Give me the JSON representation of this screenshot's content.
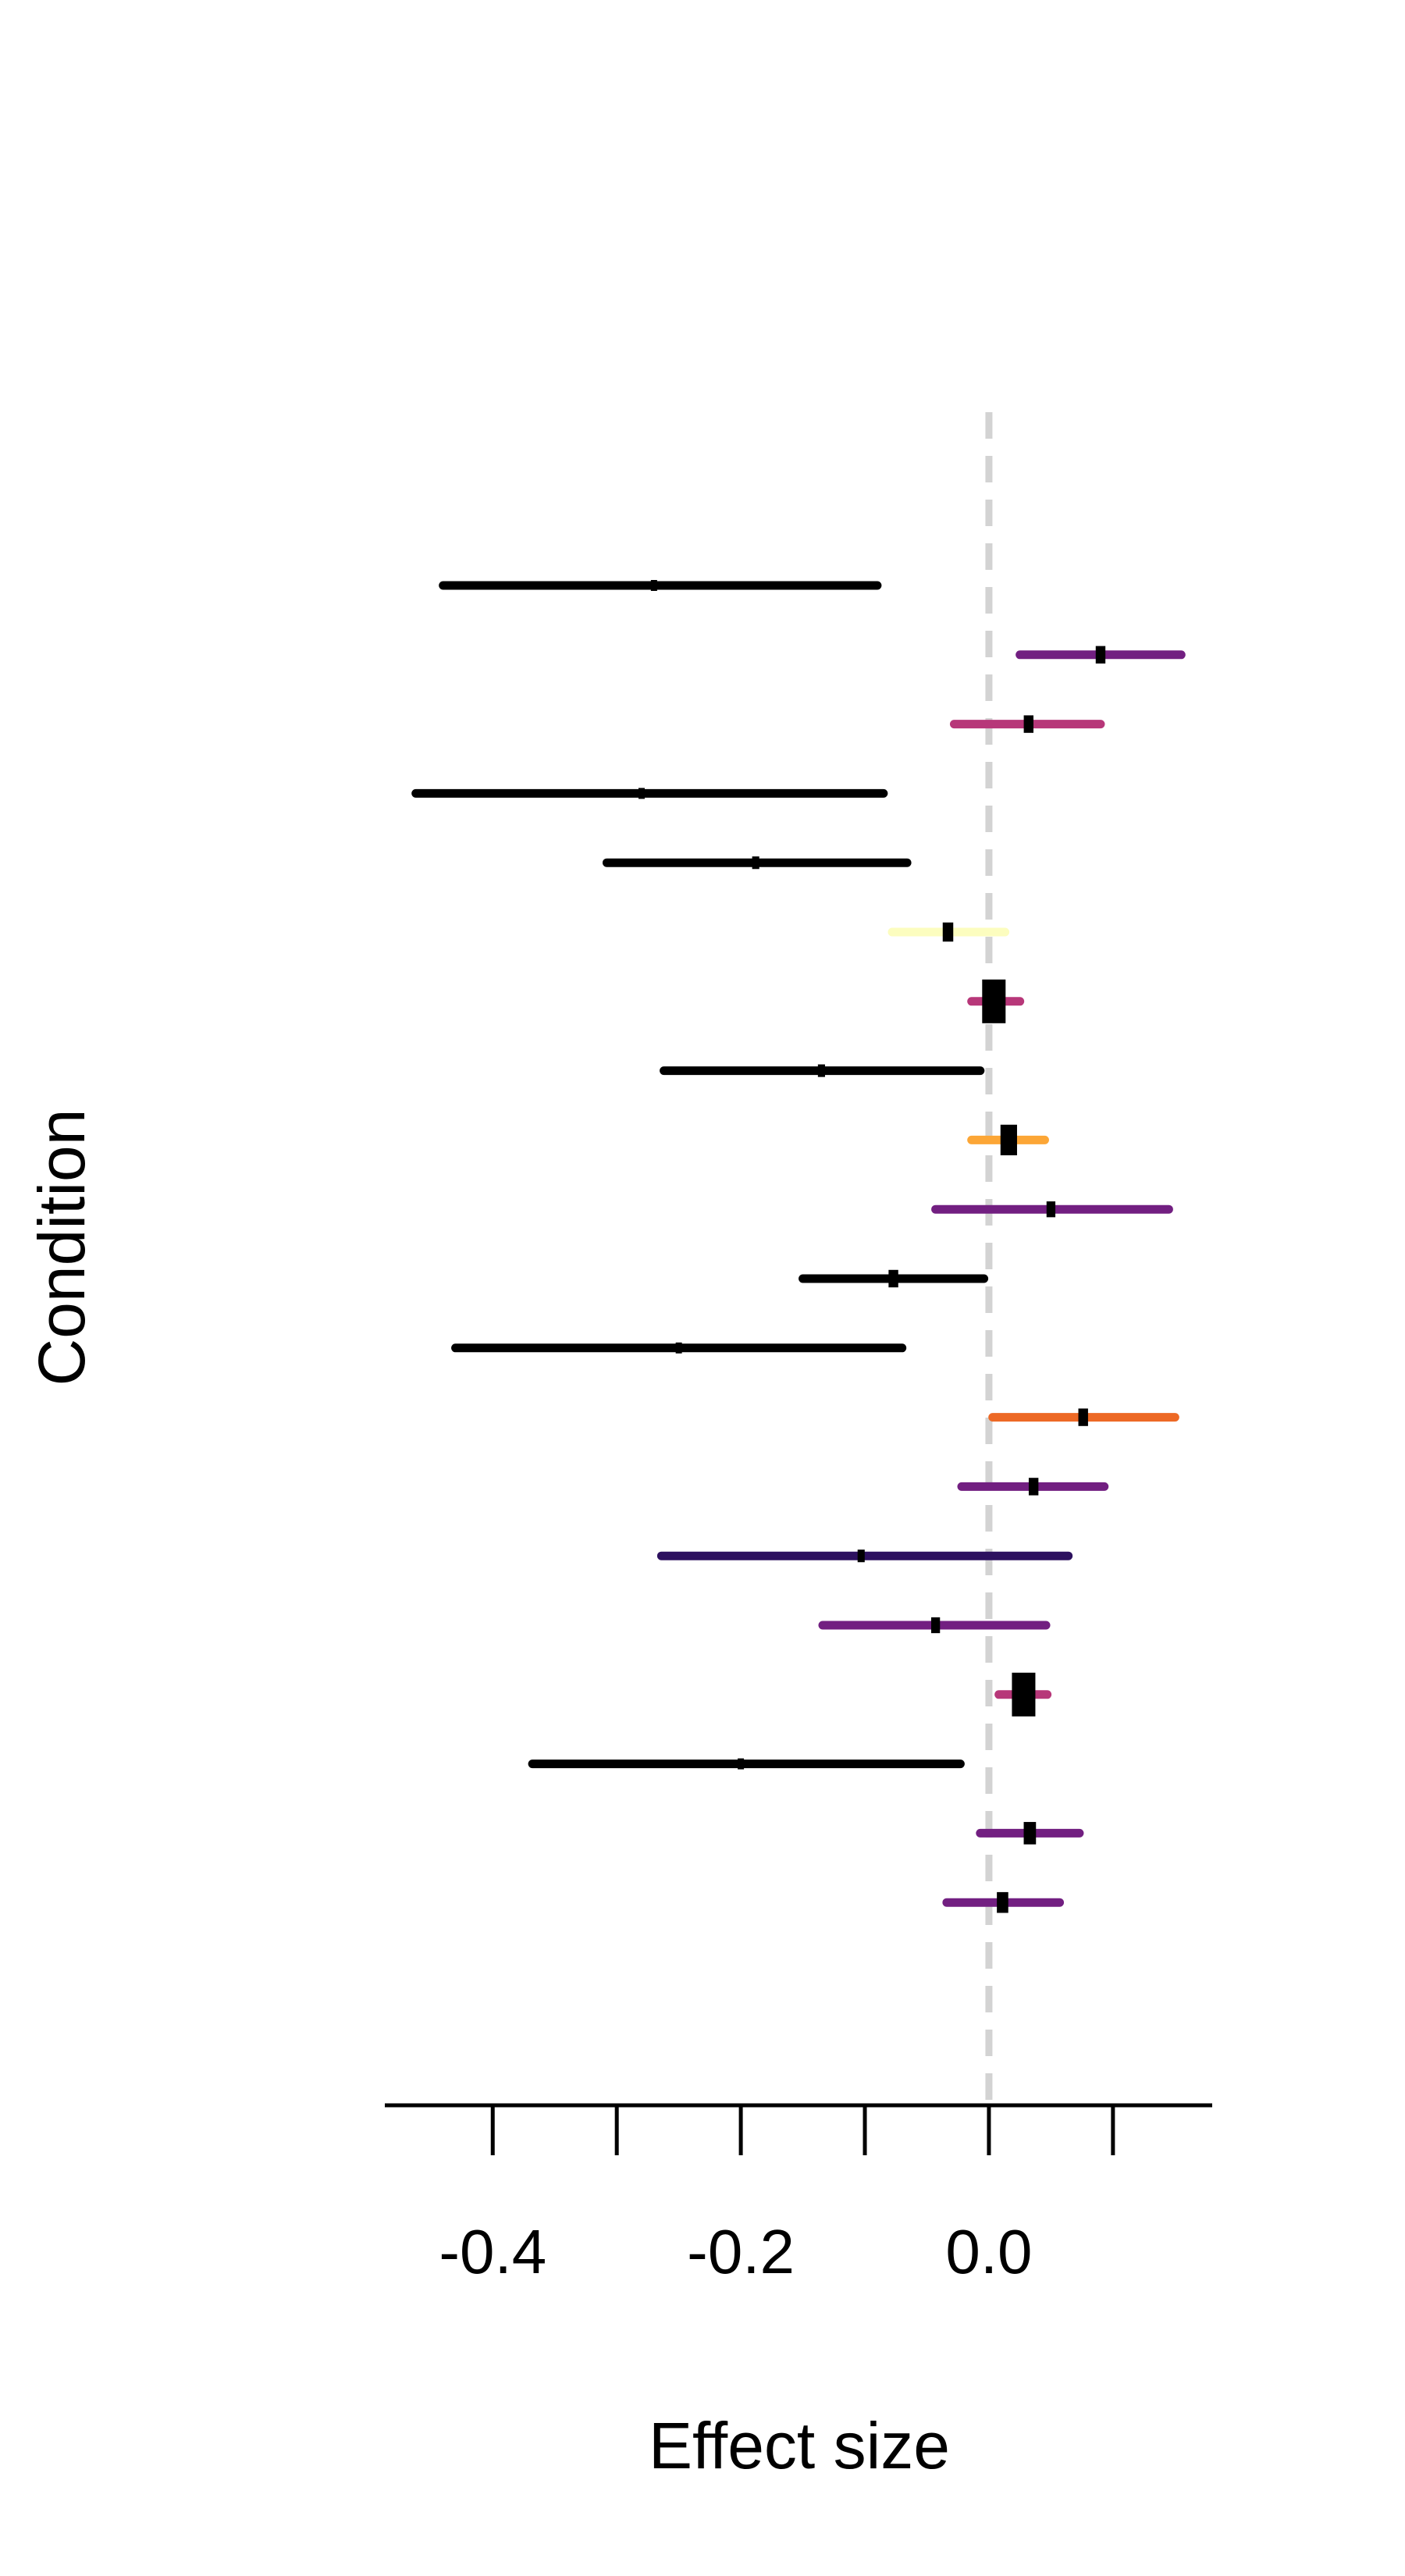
{
  "chart_data": {
    "type": "forest",
    "xlabel": "Effect size",
    "ylabel": "Condition",
    "xlim": [
      -0.487,
      0.18
    ],
    "x_ticks": [
      -0.4,
      -0.3,
      -0.2,
      -0.1,
      0.0,
      0.1
    ],
    "x_tick_labels": [
      {
        "value": -0.4,
        "label": "-0.4"
      },
      {
        "value": -0.2,
        "label": "-0.2"
      },
      {
        "value": 0.0,
        "label": "0.0"
      }
    ],
    "reference_line": {
      "x": 0.0,
      "style": "dashed",
      "color": "#d3d3d3"
    },
    "rows": [
      {
        "estimate": -0.27,
        "lower": -0.44,
        "upper": -0.09,
        "color": "#000000",
        "weight": 0.0
      },
      {
        "estimate": 0.09,
        "lower": 0.025,
        "upper": 0.155,
        "color": "#721f81",
        "weight": 0.2
      },
      {
        "estimate": 0.032,
        "lower": -0.028,
        "upper": 0.09,
        "color": "#b73779",
        "weight": 0.2
      },
      {
        "estimate": -0.28,
        "lower": -0.462,
        "upper": -0.085,
        "color": "#000000",
        "weight": 0.0
      },
      {
        "estimate": -0.188,
        "lower": -0.308,
        "upper": -0.066,
        "color": "#000000",
        "weight": 0.05
      },
      {
        "estimate": -0.033,
        "lower": -0.078,
        "upper": 0.013,
        "color": "#fcfdbf",
        "weight": 0.25
      },
      {
        "estimate": 0.004,
        "lower": -0.014,
        "upper": 0.025,
        "color": "#b73779",
        "weight": 1.0
      },
      {
        "estimate": -0.135,
        "lower": -0.262,
        "upper": -0.007,
        "color": "#000000",
        "weight": 0.05
      },
      {
        "estimate": 0.016,
        "lower": -0.014,
        "upper": 0.045,
        "color": "#fca636",
        "weight": 0.6
      },
      {
        "estimate": 0.05,
        "lower": -0.043,
        "upper": 0.145,
        "color": "#721f81",
        "weight": 0.15
      },
      {
        "estimate": -0.077,
        "lower": -0.15,
        "upper": -0.004,
        "color": "#000000",
        "weight": 0.2
      },
      {
        "estimate": -0.25,
        "lower": -0.43,
        "upper": -0.07,
        "color": "#000000",
        "weight": 0.0
      },
      {
        "estimate": 0.076,
        "lower": 0.003,
        "upper": 0.15,
        "color": "#ed6925",
        "weight": 0.2
      },
      {
        "estimate": 0.036,
        "lower": -0.022,
        "upper": 0.093,
        "color": "#721f81",
        "weight": 0.2
      },
      {
        "estimate": -0.103,
        "lower": -0.264,
        "upper": 0.064,
        "color": "#2d115f",
        "weight": 0.05
      },
      {
        "estimate": -0.043,
        "lower": -0.134,
        "upper": 0.046,
        "color": "#721f81",
        "weight": 0.15
      },
      {
        "estimate": 0.028,
        "lower": 0.008,
        "upper": 0.047,
        "color": "#b73779",
        "weight": 1.0
      },
      {
        "estimate": -0.2,
        "lower": -0.368,
        "upper": -0.023,
        "color": "#000000",
        "weight": 0.0
      },
      {
        "estimate": 0.033,
        "lower": -0.007,
        "upper": 0.073,
        "color": "#721f81",
        "weight": 0.35
      },
      {
        "estimate": 0.011,
        "lower": -0.034,
        "upper": 0.057,
        "color": "#721f81",
        "weight": 0.3
      }
    ]
  }
}
